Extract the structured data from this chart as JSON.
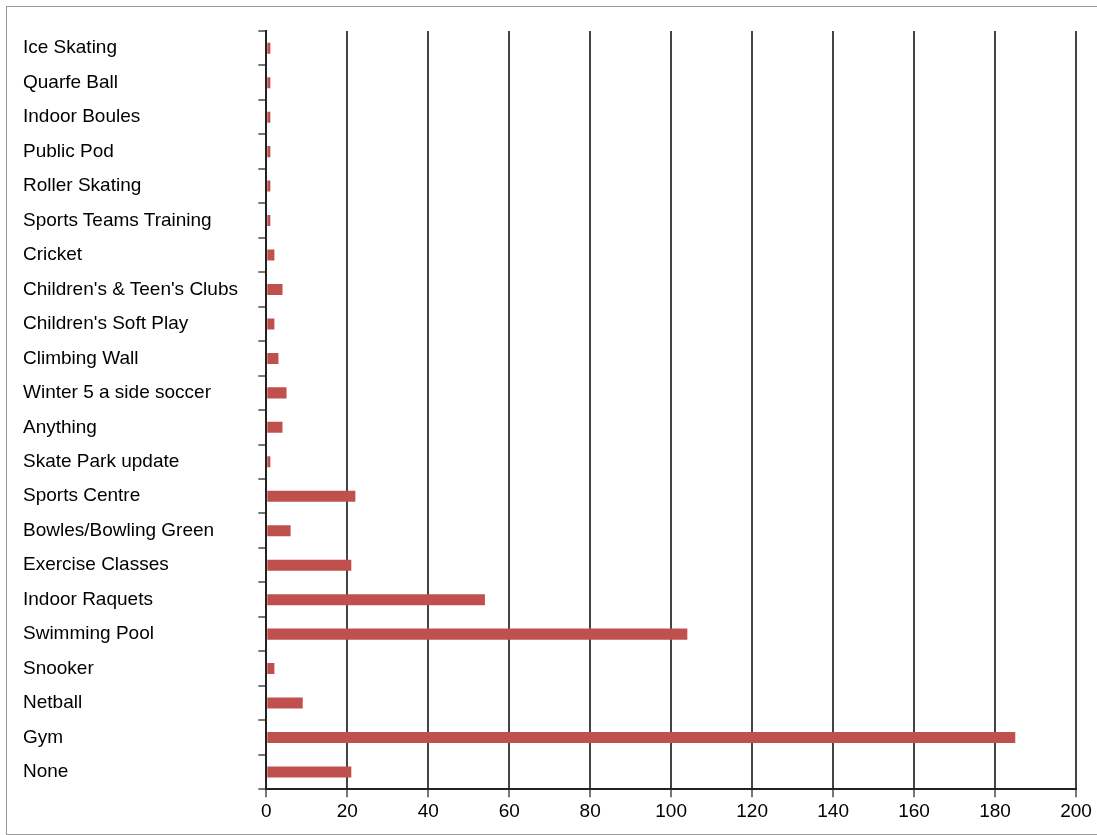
{
  "chart_data": {
    "type": "bar",
    "orientation": "horizontal",
    "categories": [
      "Ice Skating",
      "Quarfe Ball",
      "Indoor Boules",
      "Public Pod",
      "Roller Skating",
      "Sports Teams Training",
      "Cricket",
      "Children's & Teen's Clubs",
      "Children's Soft Play",
      "Climbing Wall",
      "Winter 5 a side soccer",
      "Anything",
      "Skate Park update",
      "Sports Centre",
      "Bowles/Bowling Green",
      "Exercise Classes",
      "Indoor Raquets",
      "Swimming Pool",
      "Snooker",
      "Netball",
      "Gym",
      "None"
    ],
    "values": [
      1,
      1,
      1,
      1,
      1,
      1,
      2,
      4,
      2,
      3,
      5,
      4,
      1,
      22,
      6,
      21,
      54,
      104,
      2,
      9,
      185,
      21
    ],
    "color": "#c0504d",
    "xlim": [
      0,
      200
    ],
    "xticks": [
      0,
      20,
      40,
      60,
      80,
      100,
      120,
      140,
      160,
      180,
      200
    ],
    "grid": "x",
    "legend": false
  }
}
